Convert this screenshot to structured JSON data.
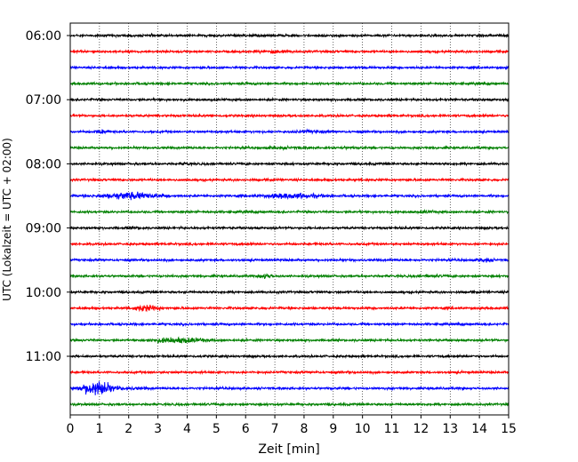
{
  "chart_data": {
    "type": "line",
    "xlabel": "Zeit  [min]",
    "ylabel": "UTC (Lokalzeit = UTC + 02:00)",
    "xlim": [
      0,
      15
    ],
    "x_ticks": [
      0,
      1,
      2,
      3,
      4,
      5,
      6,
      7,
      8,
      9,
      10,
      11,
      12,
      13,
      14,
      15
    ],
    "y_tick_labels": [
      "06:00",
      "07:00",
      "08:00",
      "09:00",
      "10:00",
      "11:00"
    ],
    "grid": "vertical dotted lines at every minute",
    "trace_minutes": 15,
    "trace_colors": [
      "#000000",
      "#ff0000",
      "#0000ff",
      "#008000"
    ],
    "traces": [
      {
        "start": "06:00",
        "events": []
      },
      {
        "start": "06:15",
        "events": [
          {
            "t": 7.0,
            "amp": 1.8,
            "dur": 0.5
          }
        ]
      },
      {
        "start": "06:30",
        "events": []
      },
      {
        "start": "06:45",
        "events": []
      },
      {
        "start": "07:00",
        "events": []
      },
      {
        "start": "07:15",
        "events": []
      },
      {
        "start": "07:30",
        "events": [
          {
            "t": 1.1,
            "amp": 2.5,
            "dur": 0.25
          },
          {
            "t": 8.2,
            "amp": 1.6,
            "dur": 0.5
          }
        ]
      },
      {
        "start": "07:45",
        "events": [
          {
            "t": 7.2,
            "amp": 1.5,
            "dur": 0.6
          },
          {
            "t": 9.5,
            "amp": 1.3,
            "dur": 0.3
          }
        ]
      },
      {
        "start": "08:00",
        "events": [
          {
            "t": 4.0,
            "amp": 1.5,
            "dur": 0.15
          }
        ]
      },
      {
        "start": "08:15",
        "events": []
      },
      {
        "start": "08:30",
        "events": [
          {
            "t": 2.1,
            "amp": 3.8,
            "dur": 0.9
          },
          {
            "t": 7.6,
            "amp": 3.0,
            "dur": 0.9
          }
        ]
      },
      {
        "start": "08:45",
        "events": [
          {
            "t": 12.2,
            "amp": 1.6,
            "dur": 0.3
          }
        ]
      },
      {
        "start": "09:00",
        "events": [
          {
            "t": 2.2,
            "amp": 1.5,
            "dur": 0.2
          }
        ]
      },
      {
        "start": "09:15",
        "events": []
      },
      {
        "start": "09:30",
        "events": [
          {
            "t": 14.2,
            "amp": 2.2,
            "dur": 0.3
          }
        ]
      },
      {
        "start": "09:45",
        "events": [
          {
            "t": 6.7,
            "amp": 2.5,
            "dur": 0.25
          },
          {
            "t": 12.3,
            "amp": 1.5,
            "dur": 0.4
          }
        ]
      },
      {
        "start": "10:00",
        "events": []
      },
      {
        "start": "10:15",
        "events": [
          {
            "t": 2.6,
            "amp": 3.5,
            "dur": 0.4
          },
          {
            "t": 6.7,
            "amp": 1.3,
            "dur": 0.15
          }
        ]
      },
      {
        "start": "10:30",
        "events": []
      },
      {
        "start": "10:45",
        "events": [
          {
            "t": 3.7,
            "amp": 3.0,
            "dur": 0.9
          }
        ]
      },
      {
        "start": "11:00",
        "events": []
      },
      {
        "start": "11:15",
        "events": []
      },
      {
        "start": "11:30",
        "events": [
          {
            "t": 0.9,
            "amp": 8.0,
            "dur": 0.5
          },
          {
            "t": 2.0,
            "amp": 1.5,
            "dur": 0.6
          }
        ]
      },
      {
        "start": "11:45",
        "events": []
      }
    ]
  }
}
